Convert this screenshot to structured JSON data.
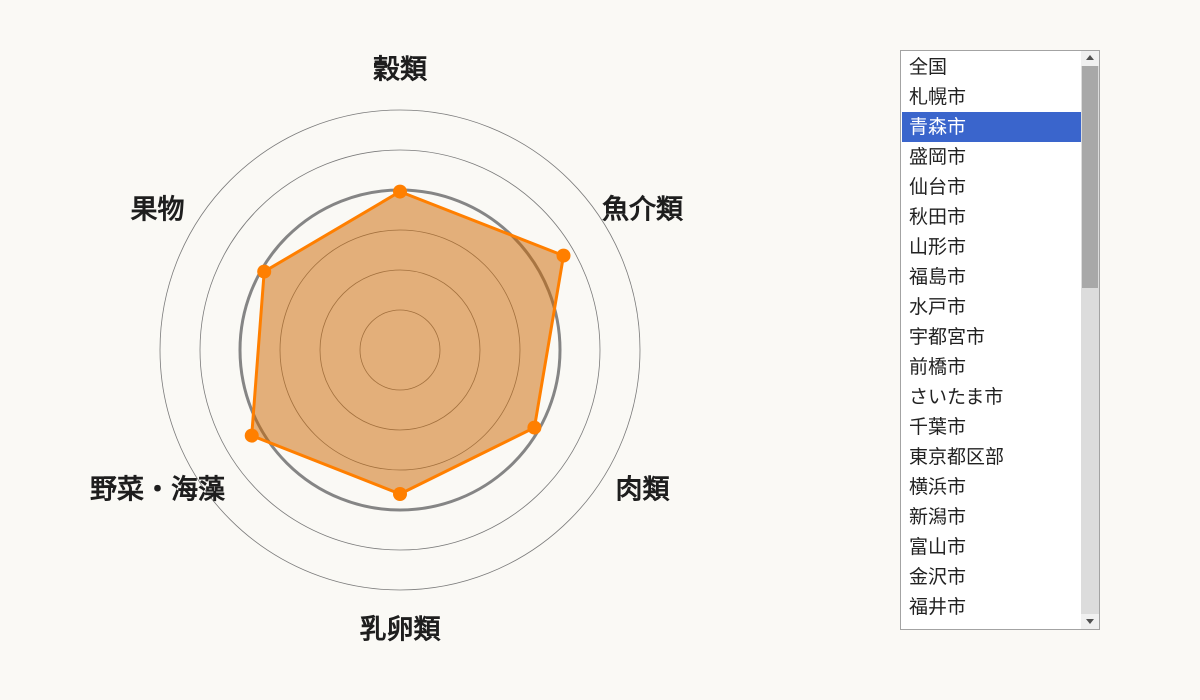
{
  "chart_data": {
    "type": "radar",
    "categories": [
      "穀類",
      "魚介類",
      "肉類",
      "乳卵類",
      "野菜・海藻",
      "果物"
    ],
    "series": [
      {
        "values": [
          99,
          118,
          97,
          90,
          107,
          98
        ]
      }
    ],
    "rlim": [
      0,
      150
    ],
    "grid": true,
    "gridlines": [
      25,
      50,
      75,
      125,
      150
    ],
    "reference_line": 100
  },
  "colors": {
    "background": "#faf9f5",
    "series_fill": "#cc6600",
    "series_stroke": "#ff7f00",
    "grid": "#7a7a7a",
    "reference_line": "#858585",
    "label": "#1e1e1e",
    "selection": "#3a65cc"
  },
  "listbox": {
    "options": [
      "全国",
      "札幌市",
      "青森市",
      "盛岡市",
      "仙台市",
      "秋田市",
      "山形市",
      "福島市",
      "水戸市",
      "宇都宮市",
      "前橋市",
      "さいたま市",
      "千葉市",
      "東京都区部",
      "横浜市",
      "新潟市",
      "富山市",
      "金沢市",
      "福井市"
    ],
    "selected_index": 2,
    "scrollbar": {
      "up_icon": "triangle-up-icon",
      "down_icon": "triangle-down-icon"
    }
  }
}
